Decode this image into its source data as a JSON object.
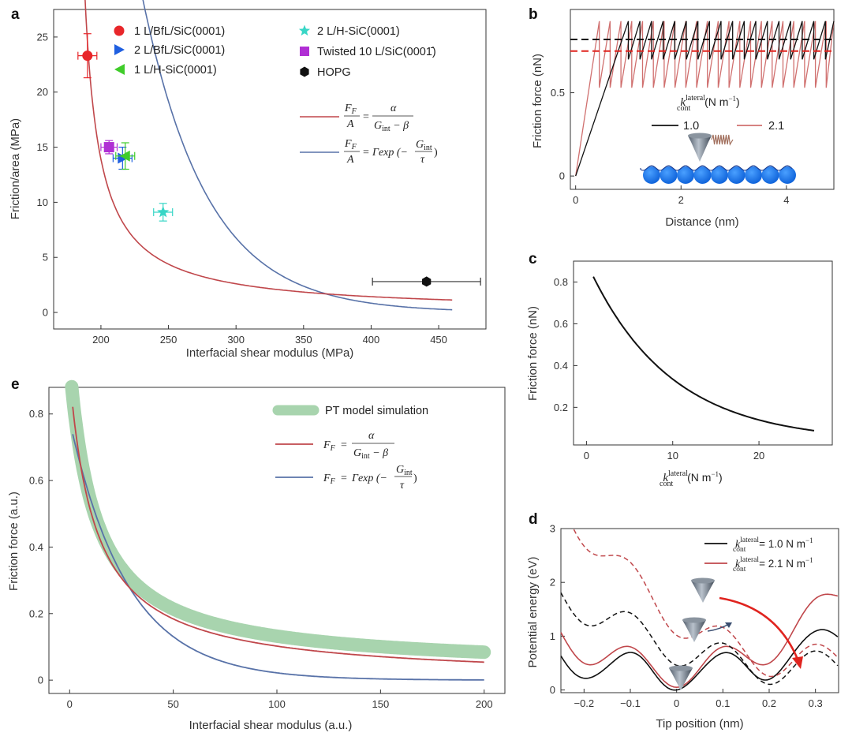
{
  "panels": {
    "a": "a",
    "b": "b",
    "c": "c",
    "d": "d",
    "e": "e"
  },
  "colors": {
    "red_curve": "#c0474b",
    "blue_curve": "#5872a8",
    "green_band": "#a8d4ae",
    "black": "#111111",
    "red_dashed": "#e0241f",
    "pink_line": "#d0706f"
  },
  "chart_data": [
    {
      "id": "a",
      "type": "scatter",
      "xlabel": "Interfacial shear modulus (MPa)",
      "ylabel": "Friction/area (MPa)",
      "xlim": [
        165,
        485
      ],
      "ylim": [
        -1.5,
        27.5
      ],
      "xticks": [
        200,
        250,
        300,
        350,
        400,
        450
      ],
      "yticks": [
        0,
        5,
        10,
        15,
        20,
        25
      ],
      "points": [
        {
          "name": "1 L/BfL/SiC(0001)",
          "marker": "circle",
          "color": "#e8262a",
          "x": 190,
          "y": 23.3,
          "xerr": 7,
          "yerr": 2.0
        },
        {
          "name": "2 L/BfL/SiC(0001)",
          "marker": "triangle-right",
          "color": "#1f5fe0",
          "x": 216,
          "y": 14.0,
          "xerr": 7,
          "yerr": 1.0
        },
        {
          "name": "1 L/H-SiC(0001)",
          "marker": "triangle-left",
          "color": "#3fcc2a",
          "x": 218,
          "y": 14.2,
          "xerr": 7,
          "yerr": 1.2
        },
        {
          "name": "2 L/H-SiC(0001)",
          "marker": "star",
          "color": "#38d6c6",
          "x": 246,
          "y": 9.1,
          "xerr": 7,
          "yerr": 0.8
        },
        {
          "name": "Twisted 10 L/SiC(0001̄)",
          "marker": "square",
          "color": "#b02fd4",
          "x": 206,
          "y": 15.0,
          "xerr": 6,
          "yerr": 0.6
        },
        {
          "name": "HOPG",
          "marker": "hexagon",
          "color": "#111111",
          "x": 441,
          "y": 2.8,
          "xerr": 40,
          "yerr": 0
        }
      ],
      "fits": [
        {
          "name": "inverse",
          "model": "a/(G-b)",
          "a": 320,
          "b": 177,
          "x_range": [
            184,
            460
          ]
        },
        {
          "name": "exponential",
          "model": "Gamma*exp(-G/tau)",
          "Gamma": 3500,
          "tau": 48,
          "x_range": [
            187,
            460
          ]
        }
      ],
      "legend_eq_1": {
        "lhs_num": "F",
        "lhs_num_sub": "F",
        "lhs_den": "A",
        "rhs_num": "α",
        "rhs_den": "G",
        "rhs_den_sub": "int",
        "rhs_den_tail": " − β"
      },
      "legend_eq_2": {
        "lhs_num": "F",
        "lhs_num_sub": "F",
        "lhs_den": "A",
        "rhs": "Γexp (−",
        "frac_num": "G",
        "frac_num_sub": "int",
        "frac_den": "τ",
        "close": ")"
      }
    },
    {
      "id": "b",
      "type": "line",
      "xlabel": "Distance (nm)",
      "ylabel": "Friction force (nN)",
      "xlim": [
        -0.1,
        4.9
      ],
      "ylim": [
        -0.08,
        1.0
      ],
      "xticks": [
        0,
        2,
        4
      ],
      "yticks": [
        0,
        0.5
      ],
      "ytick_labels": [
        "0",
        "0.5"
      ],
      "series": [
        {
          "name": "1.0",
          "k": 1.0,
          "ramp_end": 1.0,
          "max": 0.93,
          "min": 0.7,
          "period": 0.22,
          "mean": 0.82
        },
        {
          "name": "2.1",
          "k": 2.1,
          "ramp_end": 0.45,
          "max": 0.93,
          "min": 0.53,
          "period": 0.205,
          "mean": 0.75
        }
      ],
      "legend_title": "k",
      "legend_title_sup": "lateral",
      "legend_title_sub": "cont",
      "legend_title_unit": " (N m",
      "legend_title_unit_sup": "−1",
      "legend_title_close": ")"
    },
    {
      "id": "c",
      "type": "line",
      "xlabel_main": "k",
      "xlabel_sup": "lateral",
      "xlabel_sub": "cont",
      "xlabel_unit": " (N m",
      "xlabel_unit_sup": "−1",
      "xlabel_close": ")",
      "ylabel": "Friction force (nN)",
      "xlim": [
        -1.5,
        28.5
      ],
      "ylim": [
        0.02,
        0.9
      ],
      "xticks": [
        0,
        10,
        20
      ],
      "yticks": [
        0.2,
        0.4,
        0.6,
        0.8
      ],
      "ytick_labels": [
        "0.2",
        "0.4",
        "0.6",
        "0.8"
      ],
      "curve": {
        "model": "a*exp(-k/t)+c",
        "a": 0.86,
        "t": 9.5,
        "c": 0.035,
        "x_range": [
          0.8,
          26.5
        ]
      }
    },
    {
      "id": "d",
      "type": "line",
      "xlabel": "Tip position (nm)",
      "ylabel": "Potential energy (eV)",
      "xlim": [
        -0.25,
        0.35
      ],
      "ylim": [
        -0.05,
        3.0
      ],
      "xticks": [
        -0.2,
        -0.1,
        0,
        0.1,
        0.2,
        0.3
      ],
      "xtick_labels": [
        "−0.2",
        "−0.1",
        "0",
        "0.1",
        "0.2",
        "0.3"
      ],
      "yticks": [
        0,
        1,
        2,
        3
      ],
      "series": [
        {
          "name": "k = 1.0 N m−1",
          "label_main": "k",
          "label_sup": "lateral",
          "label_sub": "cont",
          "label_tail": " = 1.0 N m",
          "label_tail_sup": "−1",
          "color": "#111111"
        },
        {
          "name": "k = 2.1 N m−1",
          "label_main": "k",
          "label_sup": "lateral",
          "label_sub": "cont",
          "label_tail": " = 2.1 N m",
          "label_tail_sup": "−1",
          "color": "#c0474b"
        }
      ]
    },
    {
      "id": "e",
      "type": "line",
      "xlabel": "Interfacial shear modulus (a.u.)",
      "ylabel": "Friction force (a.u.)",
      "xlim": [
        -10,
        210
      ],
      "ylim": [
        -0.04,
        0.88
      ],
      "xticks": [
        0,
        50,
        100,
        150,
        200
      ],
      "yticks": [
        0,
        0.2,
        0.4,
        0.6,
        0.8
      ],
      "ytick_labels": [
        "0",
        "0.2",
        "0.4",
        "0.6",
        "0.8"
      ],
      "series": [
        {
          "name": "PT model simulation",
          "model": "inverse",
          "a": 11.5,
          "b": -12.5,
          "offset": 0.03,
          "x_range": [
            1,
            200
          ],
          "color": "#a8d4ae"
        },
        {
          "name": "inverse fit",
          "model": "inverse",
          "a": 11.5,
          "b": -12.5,
          "offset": 0.0,
          "x_range": [
            1.5,
            200
          ],
          "color": "#c0474b"
        },
        {
          "name": "exponential fit",
          "model": "exp",
          "Gamma": 0.78,
          "tau": 28,
          "x_range": [
            1.5,
            200
          ],
          "color": "#5872a8"
        }
      ],
      "legend": {
        "sim": "PT model simulation",
        "eq1_lhs": "F",
        "eq1_lhs_sub": "F",
        "eq1_num": "α",
        "eq1_den": "G",
        "eq1_den_sub": "int",
        "eq1_den_tail": " − β",
        "eq2_lhs": "F",
        "eq2_lhs_sub": "F",
        "eq2_rhs": "Γexp (−",
        "eq2_frac_num": "G",
        "eq2_frac_num_sub": "int",
        "eq2_frac_den": "τ",
        "eq2_close": ")"
      }
    }
  ]
}
